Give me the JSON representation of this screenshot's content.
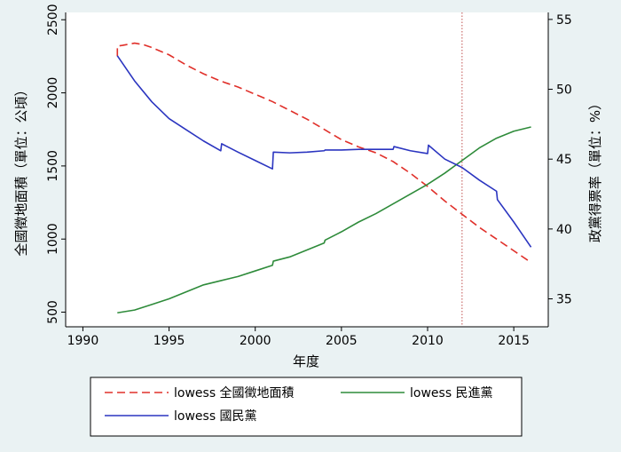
{
  "chart_data": {
    "type": "line",
    "title": "",
    "xlabel": "年度",
    "ylabel_left": "全國徵地面積（單位：公頃）",
    "ylabel_right": "政黨得票率（單位：%）",
    "xlim": [
      1989,
      2017
    ],
    "xticks": [
      "1990",
      "1995",
      "2000",
      "2005",
      "2010",
      "2015"
    ],
    "ylim_left": [
      400,
      2550
    ],
    "yticks_left": [
      "500",
      "1000",
      "1500",
      "2000",
      "2500"
    ],
    "ylim_right": [
      33,
      55.5
    ],
    "yticks_right": [
      "35",
      "40",
      "45",
      "50",
      "55"
    ],
    "vline_x": 2012,
    "grid": false,
    "legend_position": "bottom",
    "series": [
      {
        "name": "lowess 全國徵地面積",
        "axis": "left",
        "style": "dashed",
        "color": "#e0302a",
        "x": [
          1992,
          1992,
          1992.3,
          1993,
          1993.5,
          1994,
          1995,
          1996,
          1997,
          1998,
          1999,
          2000,
          2001,
          2002,
          2003,
          2004,
          2005,
          2006,
          2007,
          2008,
          2009,
          2010,
          2011,
          2012,
          2013,
          2014,
          2015,
          2016
        ],
        "y": [
          2250,
          2320,
          2325,
          2340,
          2330,
          2310,
          2260,
          2190,
          2130,
          2080,
          2040,
          1990,
          1940,
          1880,
          1820,
          1750,
          1680,
          1630,
          1590,
          1530,
          1450,
          1360,
          1260,
          1170,
          1080,
          1000,
          920,
          840
        ]
      },
      {
        "name": "lowess 民進黨",
        "axis": "right",
        "style": "solid",
        "color": "#2e8b3a",
        "x": [
          1992,
          1993,
          1994,
          1995,
          1996,
          1997,
          1998,
          1999,
          2000,
          2001,
          2001.05,
          2002,
          2003,
          2004,
          2004.05,
          2005,
          2006,
          2007,
          2008,
          2009,
          2010,
          2011,
          2012,
          2013,
          2014,
          2015,
          2016
        ],
        "y": [
          34,
          34.2,
          34.6,
          35,
          35.5,
          36,
          36.3,
          36.6,
          37,
          37.4,
          37.7,
          38.0,
          38.5,
          39.0,
          39.2,
          39.8,
          40.5,
          41.1,
          41.8,
          42.5,
          43.2,
          44.0,
          44.9,
          45.8,
          46.5,
          47.0,
          47.3
        ]
      },
      {
        "name": "lowess 國民黨",
        "axis": "right",
        "style": "solid",
        "color": "#2b35c0",
        "x": [
          1992,
          1993,
          1994,
          1995,
          1996,
          1997,
          1998,
          1998.05,
          1999,
          2000,
          2001,
          2001.05,
          2002,
          2003,
          2004,
          2004.05,
          2005,
          2006,
          2007,
          2008,
          2008.05,
          2009,
          2010,
          2010.05,
          2011,
          2012,
          2013,
          2014,
          2014.05,
          2015,
          2016
        ],
        "y": [
          52.4,
          50.6,
          49.1,
          47.9,
          47.1,
          46.3,
          45.6,
          46.1,
          45.5,
          44.9,
          44.3,
          45.5,
          45.45,
          45.5,
          45.6,
          45.65,
          45.65,
          45.7,
          45.7,
          45.7,
          45.9,
          45.6,
          45.4,
          46.0,
          45.0,
          44.4,
          43.5,
          42.7,
          42.1,
          40.5,
          38.7
        ]
      }
    ]
  }
}
